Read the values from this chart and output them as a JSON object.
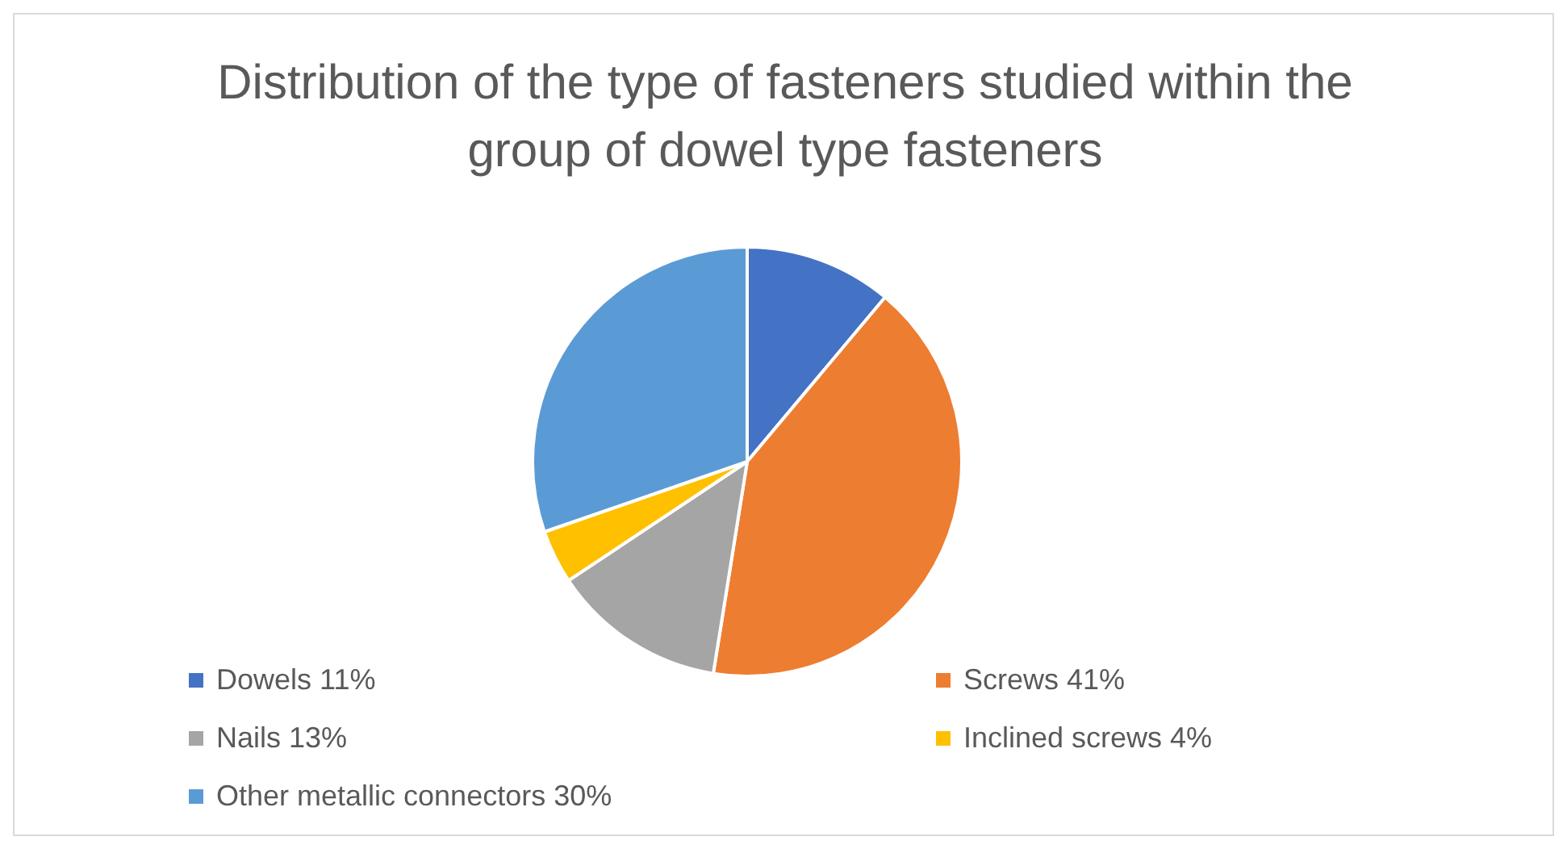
{
  "chart_data": {
    "type": "pie",
    "title": "Distribution of the type of fasteners studied within the group of dowel type fasteners",
    "categories": [
      "Dowels",
      "Screws",
      "Nails",
      "Inclined screws",
      "Other metallic connectors"
    ],
    "values": [
      11,
      41,
      13,
      4,
      30
    ],
    "value_labels": [
      "11%",
      "41%",
      "13%",
      "4%",
      "30%"
    ],
    "colors": [
      "#4472c4",
      "#ed7d31",
      "#a5a5a5",
      "#ffc000",
      "#5b9bd5"
    ],
    "legend": "bottom"
  }
}
